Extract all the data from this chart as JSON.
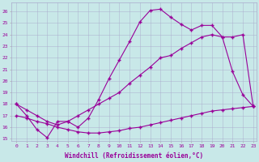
{
  "xlabel": "Windchill (Refroidissement éolien,°C)",
  "bg_color": "#c8e8e8",
  "line_color": "#990099",
  "xlim": [
    -0.5,
    23.3
  ],
  "ylim": [
    14.8,
    26.8
  ],
  "yticks": [
    15,
    16,
    17,
    18,
    19,
    20,
    21,
    22,
    23,
    24,
    25,
    26
  ],
  "xticks": [
    0,
    1,
    2,
    3,
    4,
    5,
    6,
    7,
    8,
    9,
    10,
    11,
    12,
    13,
    14,
    15,
    16,
    17,
    18,
    19,
    20,
    21,
    22,
    23
  ],
  "line1_x": [
    0,
    1,
    2,
    3,
    4,
    5,
    6,
    7,
    8,
    9,
    10,
    11,
    12,
    13,
    14,
    15,
    16,
    17,
    18,
    19,
    20,
    21,
    22,
    23
  ],
  "line1_y": [
    18.0,
    17.0,
    15.8,
    15.1,
    16.5,
    16.5,
    16.0,
    16.8,
    18.4,
    20.2,
    21.8,
    23.4,
    25.1,
    26.1,
    26.2,
    25.5,
    24.9,
    24.4,
    24.8,
    24.8,
    23.8,
    20.8,
    18.8,
    17.8
  ],
  "line2_x": [
    0,
    1,
    2,
    3,
    4,
    5,
    6,
    7,
    8,
    9,
    10,
    11,
    12,
    13,
    14,
    15,
    16,
    17,
    18,
    19,
    20,
    21,
    22,
    23
  ],
  "line2_y": [
    17.0,
    16.8,
    16.5,
    16.3,
    16.0,
    15.8,
    15.6,
    15.5,
    15.5,
    15.6,
    15.7,
    15.9,
    16.0,
    16.2,
    16.4,
    16.6,
    16.8,
    17.0,
    17.2,
    17.4,
    17.5,
    17.6,
    17.7,
    17.8
  ],
  "line3_x": [
    0,
    1,
    2,
    3,
    4,
    5,
    6,
    7,
    8,
    9,
    10,
    11,
    12,
    13,
    14,
    15,
    16,
    17,
    18,
    19,
    20,
    21,
    22,
    23
  ],
  "line3_y": [
    18.0,
    17.5,
    17.0,
    16.5,
    16.2,
    16.5,
    17.0,
    17.5,
    18.0,
    18.5,
    19.0,
    19.8,
    20.5,
    21.2,
    22.0,
    22.2,
    22.8,
    23.3,
    23.8,
    24.0,
    23.8,
    23.8,
    24.0,
    17.8
  ]
}
